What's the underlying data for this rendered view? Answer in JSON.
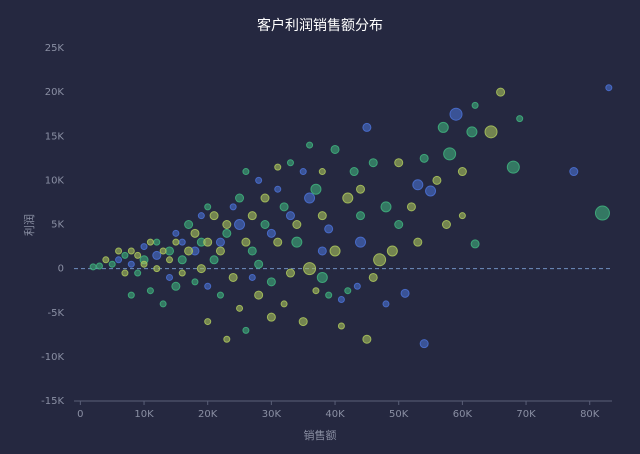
{
  "chart_data": {
    "type": "scatter",
    "title": "客户利润销售额分布",
    "x_label": "销售额",
    "y_label": "利润",
    "xlim": [
      -1,
      83.5
    ],
    "ylim": [
      -15,
      25
    ],
    "xticks": [
      0,
      {
        "value": 10,
        "label": "10K"
      },
      {
        "value": 20,
        "label": "20K"
      },
      {
        "value": 30,
        "label": "30K"
      },
      {
        "value": 40,
        "label": "40K"
      },
      {
        "value": 50,
        "label": "50K"
      },
      {
        "value": 60,
        "label": "60K"
      },
      {
        "value": 70,
        "label": "70K"
      },
      {
        "value": 80,
        "label": "80K"
      }
    ],
    "yticks": [
      {
        "value": -15,
        "label": "-15K"
      },
      {
        "value": -10,
        "label": "-10K"
      },
      {
        "value": -5,
        "label": "-5K"
      },
      0,
      {
        "value": 5,
        "label": "5K"
      },
      {
        "value": 10,
        "label": "10K"
      },
      {
        "value": 15,
        "label": "15K"
      },
      {
        "value": 20,
        "label": "20K"
      },
      {
        "value": 25,
        "label": "25K"
      }
    ],
    "series": [
      {
        "color": "#4a6fd0",
        "x": [
          83,
          77.5,
          59,
          54,
          51,
          45,
          53,
          55,
          44,
          43.5,
          36,
          33,
          30,
          38,
          28,
          25,
          22,
          18,
          15,
          12,
          10,
          8,
          20,
          27,
          35,
          41,
          48,
          14,
          6,
          24,
          31,
          39,
          16,
          19
        ],
        "values": [
          20.5,
          11,
          17.5,
          -8.5,
          -2.8,
          16,
          9.5,
          8.8,
          3,
          -2,
          8,
          6,
          4,
          2,
          10,
          5,
          3,
          2,
          4,
          1.5,
          2.5,
          0.5,
          -2,
          -1,
          11,
          -3.5,
          -4,
          -1,
          1,
          7,
          9,
          4.5,
          3,
          6
        ],
        "sizes": [
          3,
          4,
          6,
          4,
          4,
          4,
          5,
          5,
          5,
          3,
          5,
          4,
          4,
          4,
          3,
          5,
          4,
          4,
          3,
          4,
          3,
          3,
          3,
          3,
          3,
          3,
          3,
          3,
          3,
          3,
          3,
          4,
          3,
          3
        ]
      },
      {
        "color": "#3fae7c",
        "x": [
          82,
          68,
          62,
          57,
          61.5,
          58,
          62,
          54,
          46,
          40,
          42,
          38,
          26,
          15,
          69,
          48,
          43,
          37,
          34,
          32,
          29,
          27,
          25,
          23,
          21,
          19,
          17,
          14,
          12,
          10,
          9,
          7,
          5,
          3,
          11,
          8,
          13,
          18,
          22,
          30,
          36,
          39,
          44,
          50,
          26,
          20,
          33,
          28,
          16,
          2
        ],
        "values": [
          6.3,
          11.5,
          18.5,
          16,
          15.5,
          13,
          2.8,
          12.5,
          12,
          13.5,
          -2.5,
          -1,
          -7,
          -2,
          17,
          7,
          11,
          9,
          3,
          7,
          5,
          2,
          8,
          4,
          1,
          3,
          5,
          2,
          3,
          1,
          -0.5,
          1.5,
          0.5,
          0.3,
          -2.5,
          -3,
          -4,
          -1.5,
          -3,
          -1.5,
          14,
          -3,
          6,
          5,
          11,
          7,
          12,
          0.5,
          1,
          0.2
        ],
        "sizes": [
          7,
          6,
          3,
          5,
          5,
          6,
          4,
          4,
          4,
          4,
          3,
          5,
          3,
          4,
          3,
          5,
          4,
          5,
          5,
          4,
          4,
          4,
          4,
          4,
          4,
          4,
          4,
          4,
          3,
          4,
          3,
          3,
          3,
          3,
          3,
          3,
          3,
          3,
          3,
          4,
          3,
          3,
          4,
          4,
          3,
          3,
          3,
          4,
          4,
          3
        ]
      },
      {
        "color": "#a9c25c",
        "x": [
          66,
          64.5,
          60,
          57.5,
          47,
          45,
          50,
          56,
          35,
          32,
          30,
          28,
          23,
          20,
          52,
          49,
          46,
          42,
          40,
          38,
          36,
          34,
          33,
          31,
          29,
          27,
          26,
          24,
          23,
          22,
          21,
          20,
          19,
          18,
          17,
          16,
          15,
          14,
          13,
          12,
          11,
          10,
          9,
          8,
          7,
          6,
          4,
          41,
          37,
          25,
          31,
          44,
          53,
          60,
          38
        ],
        "values": [
          20,
          15.5,
          11,
          5,
          1,
          -8,
          12,
          10,
          -6,
          -4,
          -5.5,
          -3,
          -8,
          -6,
          7,
          2,
          -1,
          8,
          2,
          6,
          0,
          5,
          -0.5,
          3,
          8,
          6,
          3,
          -1,
          5,
          2,
          6,
          3,
          0,
          4,
          2,
          -0.5,
          3,
          1,
          2,
          0,
          3,
          0.5,
          1.5,
          2,
          -0.5,
          2,
          1,
          -6.5,
          -2.5,
          -4.5,
          11.5,
          9,
          3,
          6,
          11
        ],
        "sizes": [
          4,
          6,
          4,
          4,
          6,
          4,
          4,
          4,
          4,
          3,
          4,
          4,
          3,
          3,
          4,
          5,
          4,
          5,
          5,
          4,
          6,
          4,
          4,
          4,
          4,
          4,
          4,
          4,
          4,
          4,
          4,
          4,
          4,
          4,
          4,
          3,
          3,
          3,
          3,
          3,
          3,
          3,
          3,
          3,
          3,
          3,
          3,
          3,
          3,
          3,
          3,
          4,
          4,
          3,
          3
        ]
      }
    ]
  }
}
